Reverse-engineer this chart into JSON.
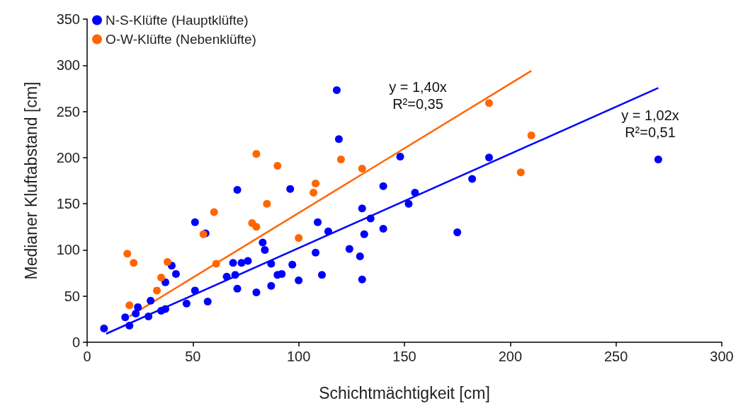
{
  "chart_data": {
    "type": "scatter",
    "xlabel": "Schichtmächtigkeit [cm]",
    "ylabel": "Medianer Kluftabstand [cm]",
    "xlim": [
      0,
      300
    ],
    "xticks": [
      0,
      50,
      100,
      150,
      200,
      250,
      300
    ],
    "ylim": [
      0,
      350
    ],
    "yticks": [
      0,
      50,
      100,
      150,
      200,
      250,
      300,
      350
    ],
    "grid": false,
    "legend": "top left",
    "series": [
      {
        "name": "N-S-Klüfte (Hauptklüfte)",
        "color": "#0000ff",
        "marker": "circle",
        "x": [
          8,
          18,
          20,
          23,
          24,
          29,
          30,
          35,
          37,
          37,
          40,
          42,
          47,
          51,
          51,
          56,
          57,
          66,
          69,
          70,
          71,
          71,
          73,
          76,
          80,
          83,
          84,
          87,
          87,
          90,
          92,
          96,
          97,
          100,
          108,
          109,
          111,
          114,
          118,
          119,
          124,
          129,
          130,
          130,
          131,
          134,
          140,
          140,
          148,
          152,
          155,
          175,
          182,
          190,
          270
        ],
        "values": [
          15,
          27,
          18,
          31,
          38,
          28,
          45,
          34,
          36,
          65,
          83,
          74,
          42,
          130,
          56,
          118,
          44,
          71,
          86,
          73,
          58,
          165,
          86,
          88,
          54,
          108,
          100,
          85,
          61,
          73,
          74,
          166,
          84,
          67,
          97,
          130,
          73,
          120,
          273,
          220,
          101,
          93,
          145,
          68,
          117,
          134,
          123,
          169,
          201,
          150,
          162,
          119,
          177,
          200,
          198
        ]
      },
      {
        "name": "O-W-Klüfte (Nebenklüfte)",
        "color": "#ff6600",
        "marker": "circle",
        "x": [
          19,
          20,
          22,
          33,
          35,
          38,
          55,
          60,
          61,
          78,
          80,
          80,
          85,
          90,
          100,
          107,
          108,
          120,
          130,
          190,
          205,
          210
        ],
        "values": [
          96,
          40,
          86,
          56,
          70,
          87,
          117,
          141,
          85,
          129,
          125,
          204,
          150,
          191,
          113,
          162,
          172,
          198,
          188,
          259,
          184,
          224
        ]
      },
      {
        "type": "line",
        "color": "#ff6600",
        "marker": "none",
        "x": [
          20,
          210
        ],
        "values": [
          28,
          294
        ]
      },
      {
        "type": "line",
        "color": "#0000ff",
        "marker": "none",
        "x": [
          9,
          270
        ],
        "values": [
          9.2,
          275.4
        ]
      }
    ],
    "annotations": [
      "y = 1,40x\nR²=0,35",
      "y = 1,02x\nR²=0,51"
    ]
  }
}
